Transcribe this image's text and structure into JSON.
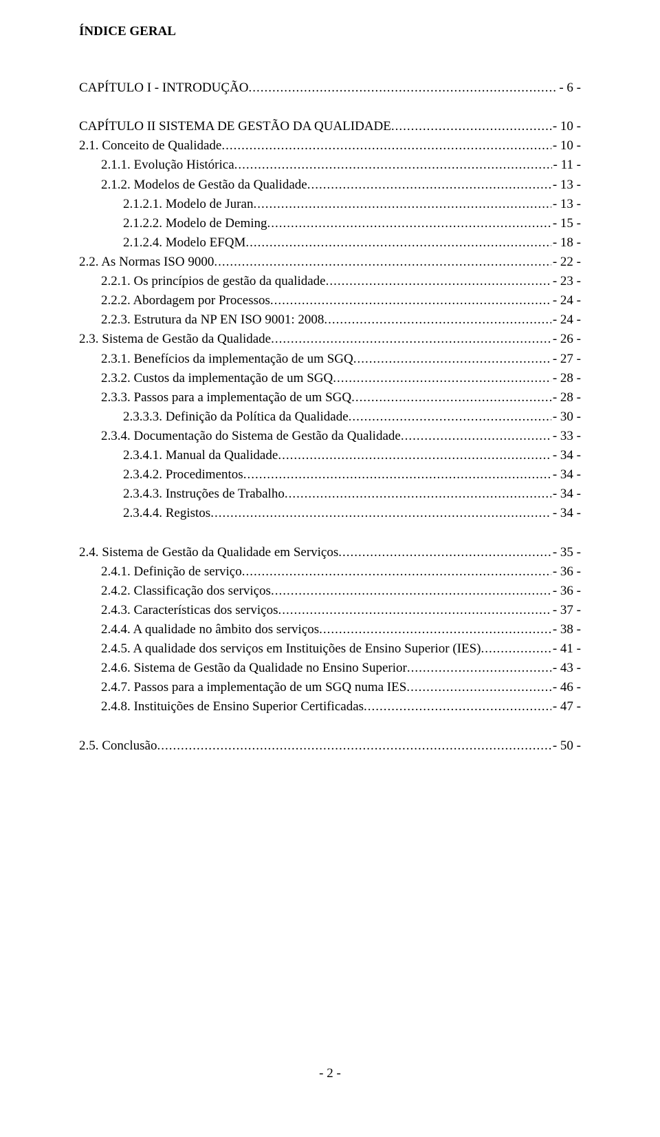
{
  "title": "ÍNDICE GERAL",
  "footer": "- 2 -",
  "blocks": [
    {
      "lines": [
        {
          "text": "CAPÍTULO I - INTRODUÇÃO",
          "page": "- 6 -",
          "indent": 0,
          "bold": false
        }
      ]
    },
    {
      "lines": [
        {
          "text": "CAPÍTULO II SISTEMA DE GESTÃO DA QUALIDADE",
          "page": "- 10 -",
          "indent": 0,
          "bold": false
        },
        {
          "text": "2.1. Conceito de Qualidade",
          "page": "- 10 -",
          "indent": 0,
          "bold": false
        },
        {
          "text": "2.1.1. Evolução Histórica",
          "page": "- 11 -",
          "indent": 1,
          "bold": false
        },
        {
          "text": "2.1.2. Modelos de Gestão da Qualidade",
          "page": "- 13 -",
          "indent": 1,
          "bold": false
        },
        {
          "text": "2.1.2.1. Modelo de Juran",
          "page": "- 13 -",
          "indent": 2,
          "bold": false
        },
        {
          "text": "2.1.2.2. Modelo de Deming",
          "page": "- 15 -",
          "indent": 2,
          "bold": false
        },
        {
          "text": "2.1.2.4. Modelo EFQM",
          "page": "- 18 -",
          "indent": 2,
          "bold": false
        },
        {
          "text": "2.2. As Normas ISO 9000",
          "page": "- 22 -",
          "indent": 0,
          "bold": false
        },
        {
          "text": "2.2.1. Os princípios de gestão da qualidade",
          "page": "- 23 -",
          "indent": 1,
          "bold": false
        },
        {
          "text": "2.2.2. Abordagem por Processos",
          "page": "- 24 -",
          "indent": 1,
          "bold": false
        },
        {
          "text": "2.2.3. Estrutura da NP EN ISO 9001: 2008",
          "page": "- 24 -",
          "indent": 1,
          "bold": false
        },
        {
          "text": "2.3. Sistema de Gestão da Qualidade",
          "page": "- 26 -",
          "indent": 0,
          "bold": false
        },
        {
          "text": "2.3.1. Benefícios da implementação de um SGQ",
          "page": "- 27 -",
          "indent": 1,
          "bold": false
        },
        {
          "text": "2.3.2. Custos da implementação de um SGQ",
          "page": "- 28 -",
          "indent": 1,
          "bold": false
        },
        {
          "text": "2.3.3. Passos para a implementação de um SGQ",
          "page": "- 28 -",
          "indent": 1,
          "bold": false
        },
        {
          "text": "2.3.3.3. Definição da Política da Qualidade",
          "page": "- 30 -",
          "indent": 2,
          "bold": false
        },
        {
          "text": "2.3.4. Documentação do Sistema de Gestão da Qualidade",
          "page": "- 33 -",
          "indent": 1,
          "bold": false
        },
        {
          "text": "2.3.4.1. Manual da Qualidade",
          "page": "- 34 -",
          "indent": 2,
          "bold": false
        },
        {
          "text": "2.3.4.2. Procedimentos",
          "page": "- 34 -",
          "indent": 2,
          "bold": false
        },
        {
          "text": "2.3.4.3. Instruções de Trabalho",
          "page": "- 34 -",
          "indent": 2,
          "bold": false
        },
        {
          "text": "2.3.4.4. Registos",
          "page": "- 34 -",
          "indent": 2,
          "bold": false
        }
      ]
    },
    {
      "lines": [
        {
          "text": "2.4. Sistema de Gestão da Qualidade em Serviços",
          "page": "- 35 -",
          "indent": 0,
          "bold": false
        },
        {
          "text": "2.4.1. Definição de serviço",
          "page": "- 36 -",
          "indent": 1,
          "bold": false
        },
        {
          "text": "2.4.2. Classificação dos serviços",
          "page": "- 36 -",
          "indent": 1,
          "bold": false
        },
        {
          "text": "2.4.3. Características dos serviços",
          "page": "- 37 -",
          "indent": 1,
          "bold": false
        },
        {
          "text": "2.4.4. A qualidade no âmbito dos serviços",
          "page": "- 38 -",
          "indent": 1,
          "bold": false
        },
        {
          "text": "2.4.5. A qualidade dos serviços em Instituições de Ensino Superior (IES)",
          "page": "- 41 -",
          "indent": 1,
          "bold": false
        },
        {
          "text": "2.4.6. Sistema de Gestão da Qualidade no Ensino Superior",
          "page": "- 43 -",
          "indent": 1,
          "bold": false
        },
        {
          "text": "2.4.7. Passos para a implementação de um SGQ numa IES",
          "page": "- 46 -",
          "indent": 1,
          "bold": false
        },
        {
          "text": "2.4.8. Instituições de Ensino Superior Certificadas",
          "page": "- 47 -",
          "indent": 1,
          "bold": false
        }
      ]
    },
    {
      "lines": [
        {
          "text": "2.5. Conclusão",
          "page": "- 50 -",
          "indent": 0,
          "bold": false
        }
      ]
    }
  ]
}
